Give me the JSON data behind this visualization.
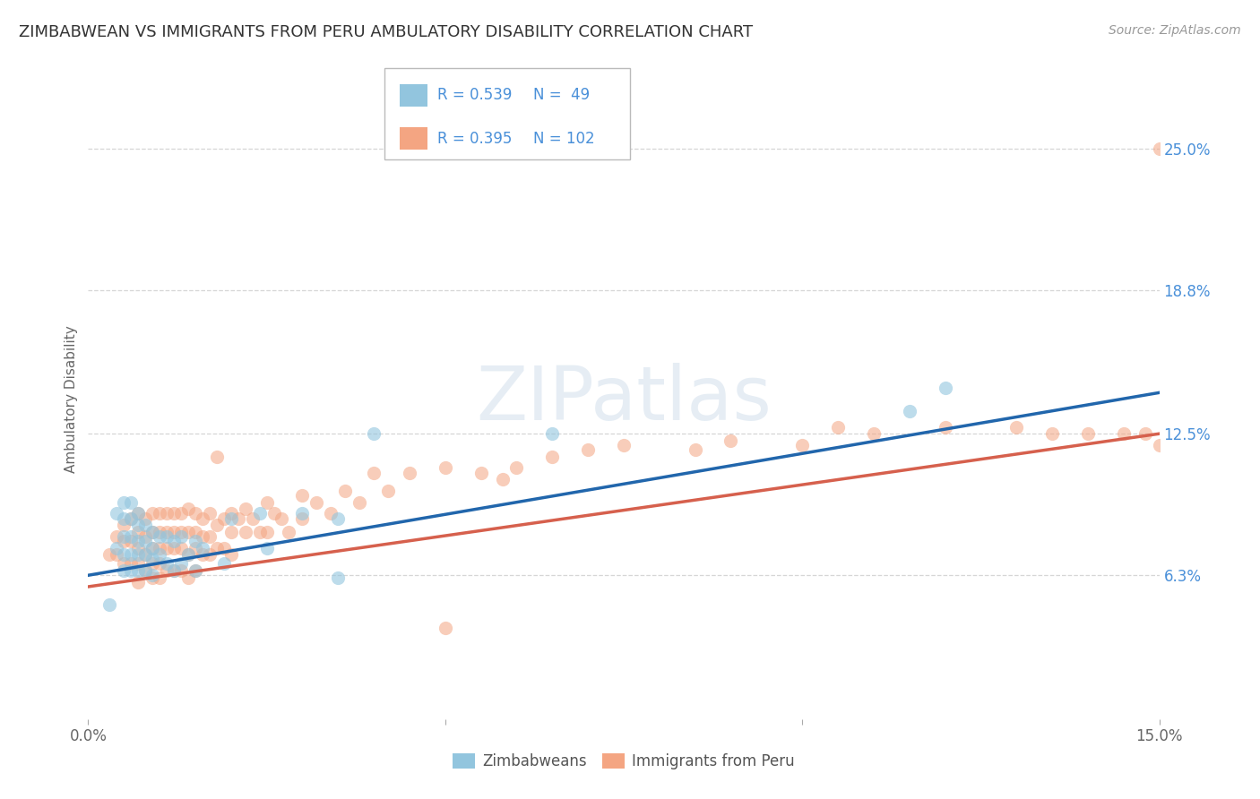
{
  "title": "ZIMBABWEAN VS IMMIGRANTS FROM PERU AMBULATORY DISABILITY CORRELATION CHART",
  "source": "Source: ZipAtlas.com",
  "ylabel": "Ambulatory Disability",
  "xlim": [
    0.0,
    0.15
  ],
  "ylim": [
    0.0,
    0.28
  ],
  "xticks": [
    0.0,
    0.05,
    0.1,
    0.15
  ],
  "xtick_labels": [
    "0.0%",
    "",
    "",
    "15.0%"
  ],
  "ytick_values_right": [
    0.063,
    0.125,
    0.188,
    0.25
  ],
  "ytick_labels_right": [
    "6.3%",
    "12.5%",
    "18.8%",
    "25.0%"
  ],
  "color_blue": "#92c5de",
  "color_blue_line": "#2166ac",
  "color_pink": "#f4a582",
  "color_pink_line": "#d6604d",
  "watermark_text": "ZIPatlas",
  "blue_line_y_start": 0.063,
  "blue_line_y_end": 0.143,
  "pink_line_y_start": 0.058,
  "pink_line_y_end": 0.125,
  "background_color": "#ffffff",
  "grid_color": "#cccccc",
  "title_fontsize": 13,
  "blue_x": [
    0.003,
    0.004,
    0.004,
    0.005,
    0.005,
    0.005,
    0.005,
    0.005,
    0.006,
    0.006,
    0.006,
    0.006,
    0.006,
    0.007,
    0.007,
    0.007,
    0.007,
    0.007,
    0.008,
    0.008,
    0.008,
    0.008,
    0.009,
    0.009,
    0.009,
    0.009,
    0.01,
    0.01,
    0.011,
    0.011,
    0.012,
    0.012,
    0.013,
    0.013,
    0.014,
    0.015,
    0.015,
    0.016,
    0.019,
    0.02,
    0.024,
    0.025,
    0.03,
    0.035,
    0.035,
    0.04,
    0.065,
    0.115,
    0.12
  ],
  "blue_y": [
    0.05,
    0.09,
    0.075,
    0.095,
    0.088,
    0.08,
    0.072,
    0.065,
    0.095,
    0.088,
    0.08,
    0.072,
    0.065,
    0.09,
    0.085,
    0.078,
    0.072,
    0.065,
    0.085,
    0.078,
    0.072,
    0.065,
    0.082,
    0.075,
    0.07,
    0.063,
    0.08,
    0.072,
    0.08,
    0.068,
    0.078,
    0.065,
    0.08,
    0.068,
    0.072,
    0.078,
    0.065,
    0.075,
    0.068,
    0.088,
    0.09,
    0.075,
    0.09,
    0.088,
    0.062,
    0.125,
    0.125,
    0.135,
    0.145
  ],
  "pink_x": [
    0.003,
    0.004,
    0.004,
    0.005,
    0.005,
    0.005,
    0.006,
    0.006,
    0.006,
    0.007,
    0.007,
    0.007,
    0.007,
    0.007,
    0.008,
    0.008,
    0.008,
    0.008,
    0.009,
    0.009,
    0.009,
    0.009,
    0.009,
    0.01,
    0.01,
    0.01,
    0.01,
    0.01,
    0.011,
    0.011,
    0.011,
    0.011,
    0.012,
    0.012,
    0.012,
    0.012,
    0.013,
    0.013,
    0.013,
    0.013,
    0.014,
    0.014,
    0.014,
    0.014,
    0.015,
    0.015,
    0.015,
    0.015,
    0.016,
    0.016,
    0.016,
    0.017,
    0.017,
    0.017,
    0.018,
    0.018,
    0.018,
    0.019,
    0.019,
    0.02,
    0.02,
    0.02,
    0.021,
    0.022,
    0.022,
    0.023,
    0.024,
    0.025,
    0.025,
    0.026,
    0.027,
    0.028,
    0.03,
    0.03,
    0.032,
    0.034,
    0.036,
    0.038,
    0.04,
    0.042,
    0.045,
    0.05,
    0.055,
    0.058,
    0.06,
    0.065,
    0.07,
    0.075,
    0.085,
    0.09,
    0.1,
    0.105,
    0.11,
    0.12,
    0.13,
    0.135,
    0.14,
    0.145,
    0.148,
    0.05,
    0.15,
    0.15
  ],
  "pink_y": [
    0.072,
    0.08,
    0.072,
    0.085,
    0.078,
    0.068,
    0.088,
    0.078,
    0.068,
    0.09,
    0.082,
    0.075,
    0.068,
    0.06,
    0.088,
    0.08,
    0.072,
    0.065,
    0.09,
    0.082,
    0.075,
    0.068,
    0.062,
    0.09,
    0.082,
    0.075,
    0.068,
    0.062,
    0.09,
    0.082,
    0.075,
    0.065,
    0.09,
    0.082,
    0.075,
    0.065,
    0.09,
    0.082,
    0.075,
    0.065,
    0.092,
    0.082,
    0.072,
    0.062,
    0.09,
    0.082,
    0.075,
    0.065,
    0.088,
    0.08,
    0.072,
    0.09,
    0.08,
    0.072,
    0.115,
    0.085,
    0.075,
    0.088,
    0.075,
    0.09,
    0.082,
    0.072,
    0.088,
    0.092,
    0.082,
    0.088,
    0.082,
    0.095,
    0.082,
    0.09,
    0.088,
    0.082,
    0.098,
    0.088,
    0.095,
    0.09,
    0.1,
    0.095,
    0.108,
    0.1,
    0.108,
    0.11,
    0.108,
    0.105,
    0.11,
    0.115,
    0.118,
    0.12,
    0.118,
    0.122,
    0.12,
    0.128,
    0.125,
    0.128,
    0.128,
    0.125,
    0.125,
    0.125,
    0.125,
    0.04,
    0.25,
    0.12
  ]
}
